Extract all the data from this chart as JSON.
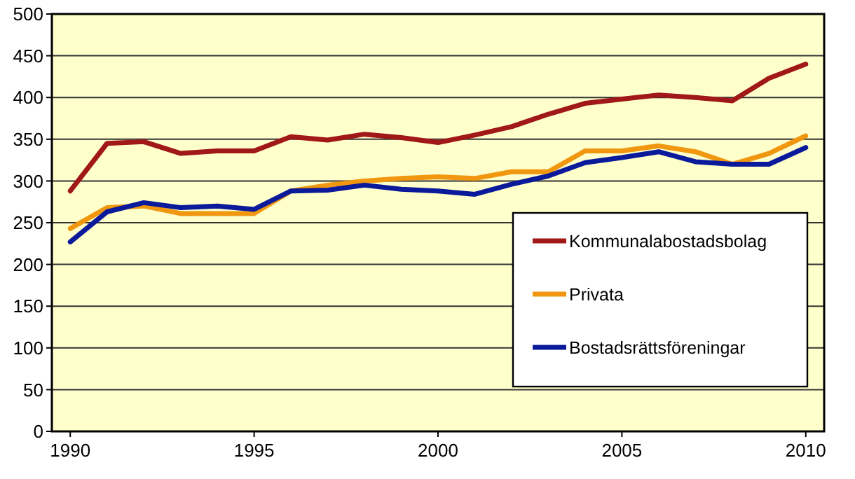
{
  "chart_data": {
    "type": "line",
    "x": [
      1990,
      1991,
      1992,
      1993,
      1994,
      1995,
      1996,
      1997,
      1998,
      1999,
      2000,
      2001,
      2002,
      2003,
      2004,
      2005,
      2006,
      2007,
      2008,
      2009,
      2010
    ],
    "xlim": [
      1989.5,
      2010.5
    ],
    "xticks": [
      1990,
      1995,
      2000,
      2005,
      2010
    ],
    "ylim": [
      0,
      500
    ],
    "yticks": [
      0,
      50,
      100,
      150,
      200,
      250,
      300,
      350,
      400,
      450,
      500
    ],
    "grid": "y",
    "legend": "bottom right",
    "marker": "none",
    "line_style": "solid",
    "series": [
      {
        "name": "Kommunalabostadsbolag",
        "color": "#a01818",
        "values": [
          288,
          345,
          347,
          333,
          336,
          336,
          353,
          349,
          356,
          352,
          346,
          355,
          365,
          380,
          393,
          398,
          403,
          400,
          396,
          423,
          440
        ]
      },
      {
        "name": "Privata",
        "color": "#f0960f",
        "values": [
          243,
          268,
          270,
          261,
          261,
          261,
          288,
          295,
          300,
          303,
          305,
          303,
          311,
          311,
          336,
          336,
          342,
          335,
          320,
          333,
          354
        ]
      },
      {
        "name": "Bostadsrättsföreningar",
        "color": "#0a1a9a",
        "values": [
          227,
          263,
          274,
          268,
          270,
          266,
          288,
          289,
          295,
          290,
          288,
          284,
          296,
          306,
          322,
          328,
          335,
          323,
          320,
          320,
          340
        ]
      }
    ]
  }
}
